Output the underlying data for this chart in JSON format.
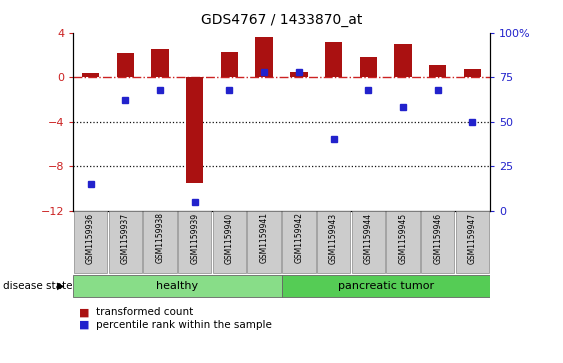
{
  "title": "GDS4767 / 1433870_at",
  "samples": [
    "GSM1159936",
    "GSM1159937",
    "GSM1159938",
    "GSM1159939",
    "GSM1159940",
    "GSM1159941",
    "GSM1159942",
    "GSM1159943",
    "GSM1159944",
    "GSM1159945",
    "GSM1159946",
    "GSM1159947"
  ],
  "transformed_count": [
    0.4,
    2.2,
    2.5,
    -9.5,
    2.3,
    3.6,
    0.5,
    3.2,
    1.8,
    3.0,
    1.1,
    0.7
  ],
  "percentile_rank": [
    15,
    62,
    68,
    5,
    68,
    78,
    78,
    40,
    68,
    58,
    68,
    50
  ],
  "ylim_left": [
    -12,
    4
  ],
  "ylim_right": [
    0,
    100
  ],
  "yticks_left": [
    4,
    0,
    -4,
    -8,
    -12
  ],
  "yticks_right": [
    100,
    75,
    50,
    25,
    0
  ],
  "groups": [
    {
      "label": "healthy",
      "start": 0,
      "end": 6
    },
    {
      "label": "pancreatic tumor",
      "start": 6,
      "end": 12
    }
  ],
  "bar_color": "#aa1111",
  "dot_color": "#2222cc",
  "disease_label": "disease state",
  "healthy_color": "#88dd88",
  "tumor_color": "#55cc55",
  "legend_bar_label": "transformed count",
  "legend_dot_label": "percentile rank within the sample",
  "zero_line_color": "#cc2222",
  "grid_color": "#111111",
  "label_bg": "#cccccc",
  "left_axis_color": "#cc2222",
  "right_axis_color": "#2222cc"
}
